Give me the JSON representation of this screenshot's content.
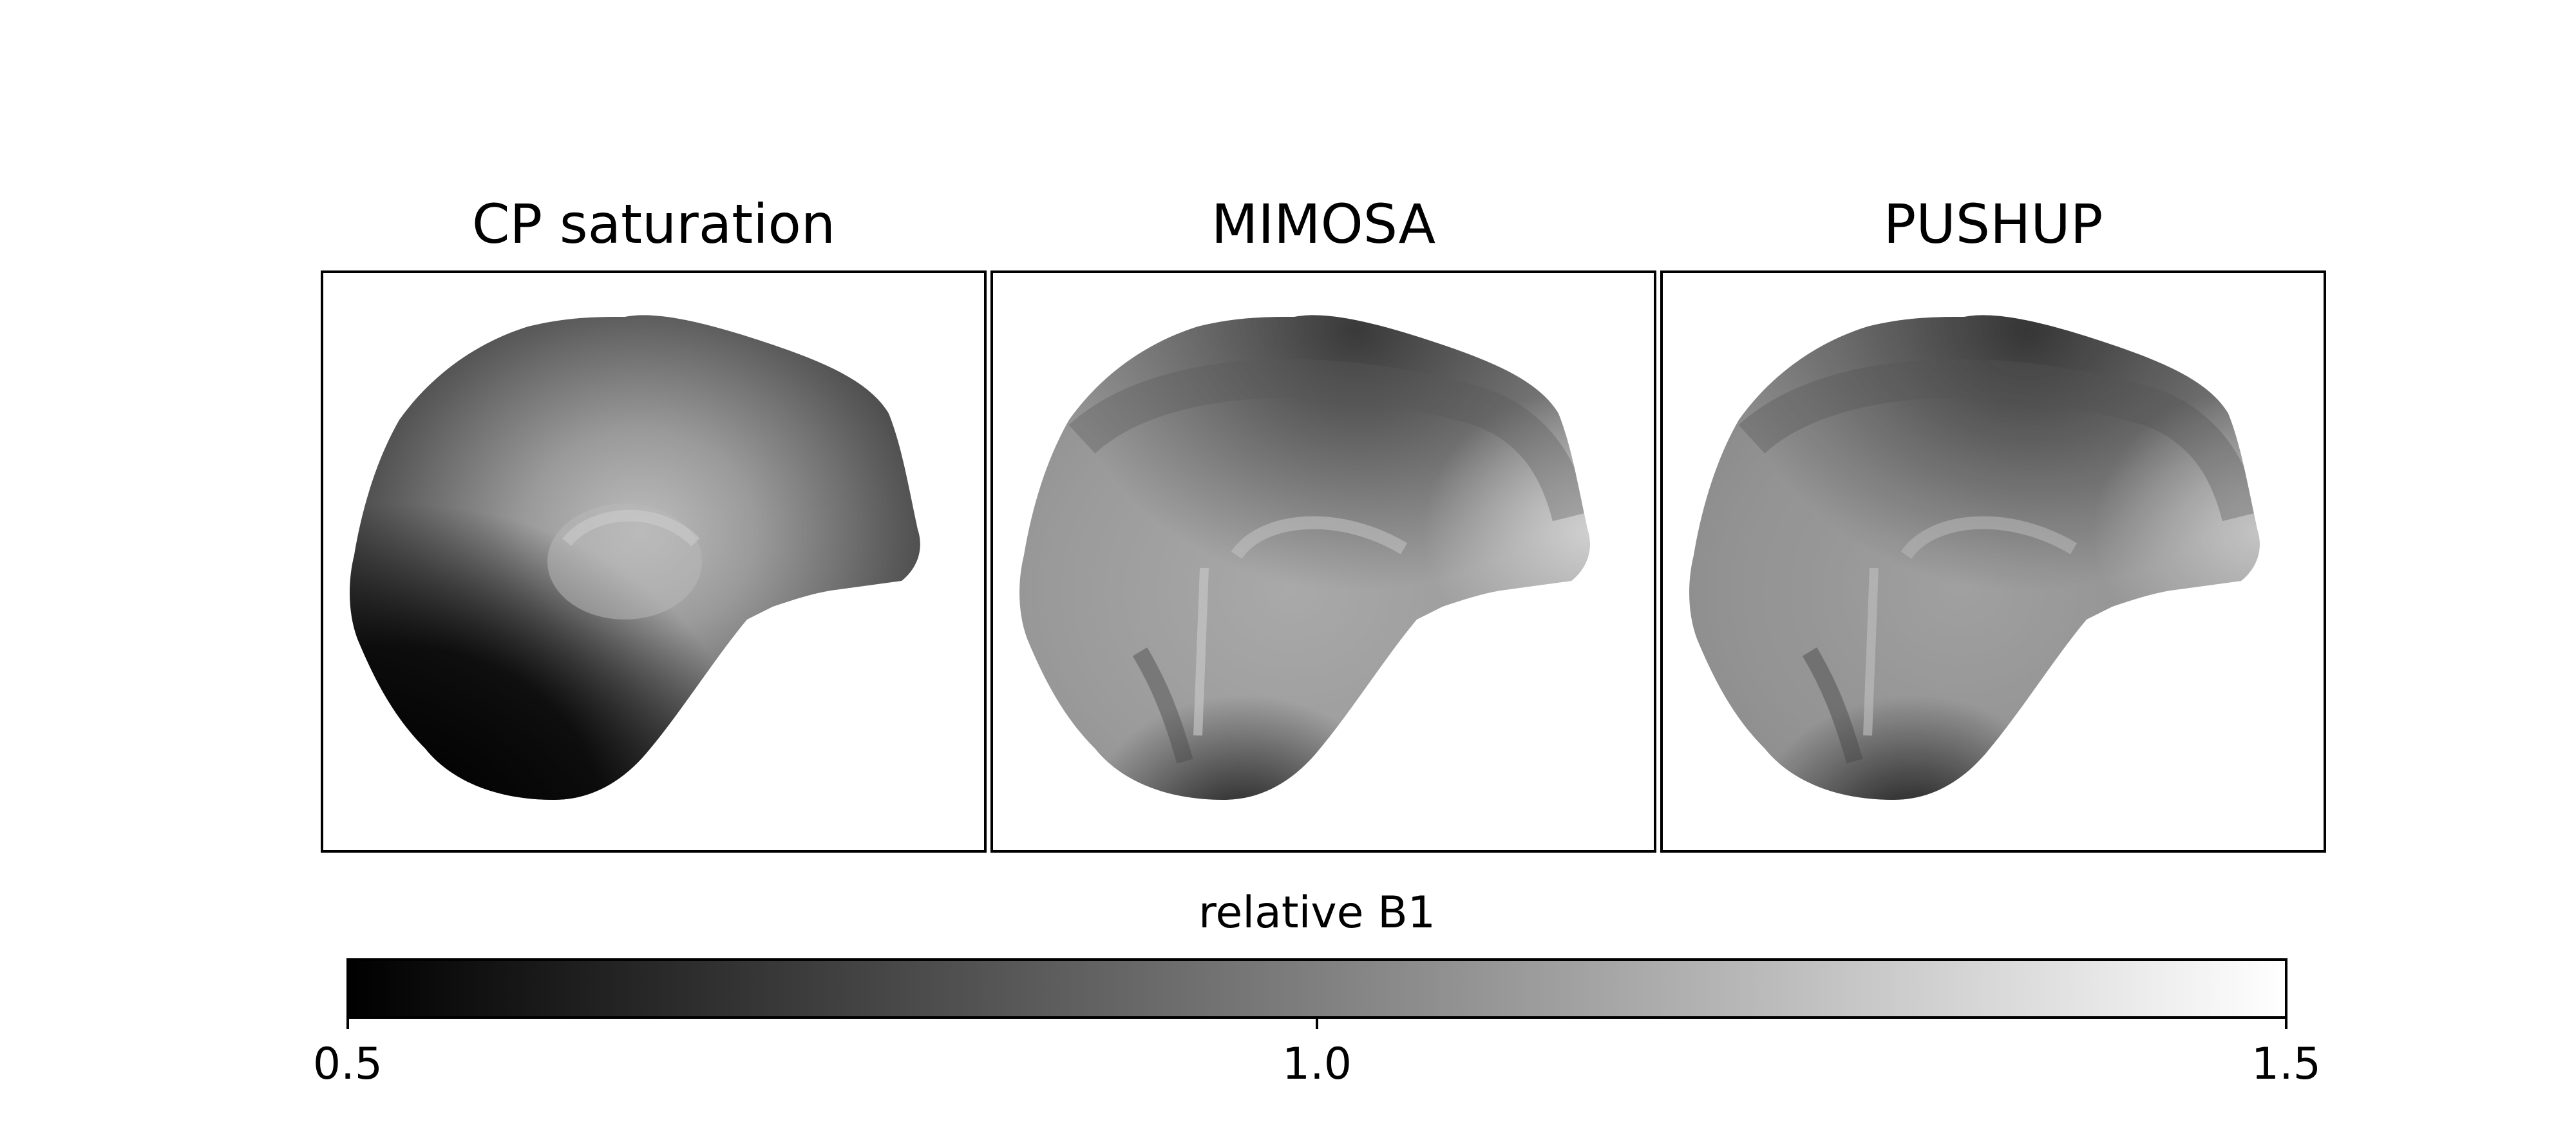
{
  "panels": [
    {
      "title": "CP saturation",
      "style": "cp"
    },
    {
      "title": "MIMOSA",
      "style": "mimosa"
    },
    {
      "title": "PUSHUP",
      "style": "pushup"
    }
  ],
  "colorbar": {
    "label": "relative B1",
    "colormap": "gray",
    "min": 0.5,
    "max": 1.5,
    "ticks": [
      "0.5",
      "1.0",
      "1.5"
    ]
  },
  "colors": {
    "background": "#ffffff",
    "frame": "#000000",
    "colormap_low": "#000000",
    "colormap_high": "#ffffff"
  }
}
